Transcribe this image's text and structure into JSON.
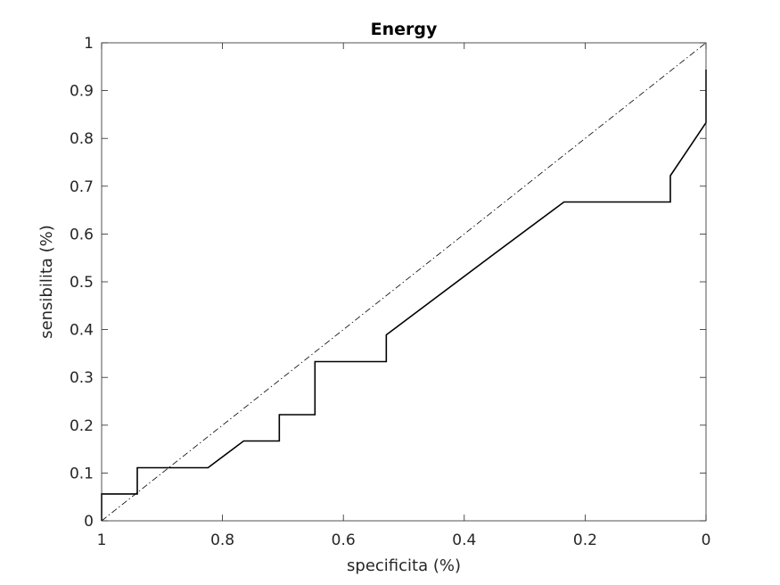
{
  "chart_data": {
    "type": "line",
    "title": "Energy",
    "xlabel": "specificita (%)",
    "ylabel": "sensibilita (%)",
    "xlim": [
      1,
      0
    ],
    "ylim": [
      0,
      1
    ],
    "x_reversed": true,
    "grid": false,
    "box": true,
    "xticks": [
      1,
      0.8,
      0.6,
      0.4,
      0.2,
      0
    ],
    "xtick_labels": [
      "1",
      "0.8",
      "0.6",
      "0.4",
      "0.2",
      "0"
    ],
    "yticks": [
      0,
      0.1,
      0.2,
      0.3,
      0.4,
      0.5,
      0.6,
      0.7,
      0.8,
      0.9,
      1
    ],
    "ytick_labels": [
      "0",
      "0.1",
      "0.2",
      "0.3",
      "0.4",
      "0.5",
      "0.6",
      "0.7",
      "0.8",
      "0.9",
      "1"
    ],
    "series": [
      {
        "style": "solid",
        "color": "#000000",
        "x": [
          1,
          1,
          0.941,
          0.941,
          0.824,
          0.765,
          0.706,
          0.706,
          0.647,
          0.647,
          0.529,
          0.529,
          0.353,
          0.235,
          0.059,
          0.059,
          0,
          0,
          0
        ],
        "y": [
          0,
          0.056,
          0.056,
          0.111,
          0.111,
          0.167,
          0.167,
          0.222,
          0.222,
          0.333,
          0.333,
          0.389,
          0.556,
          0.667,
          0.667,
          0.722,
          0.833,
          0.889,
          0.944
        ]
      },
      {
        "style": "dash-dot",
        "color": "#000000",
        "x": [
          1,
          0
        ],
        "y": [
          0,
          1
        ]
      }
    ]
  }
}
